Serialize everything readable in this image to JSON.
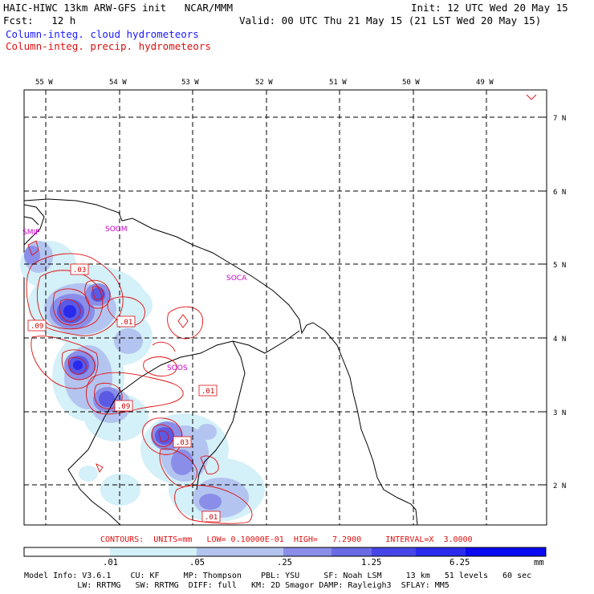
{
  "header": {
    "left_line1": "HAIC-HIWC 13km ARW-GFS init   NCAR/MMM",
    "right_line1": "Init: 12 UTC Wed 20 May 15",
    "left_line2": "Fcst:   12 h",
    "right_line2": "Valid: 00 UTC Thu 21 May 15 (21 LST Wed 20 May 15)",
    "legend_cloud": "Column-integ. cloud hydrometeors",
    "legend_precip": "Column-integ. precip. hydrometeors"
  },
  "map": {
    "lon_labels": [
      "55 W",
      "54 W",
      "53 W",
      "52 W",
      "51 W",
      "50 W",
      "49 W"
    ],
    "lat_labels": [
      "7 N",
      "6 N",
      "5 N",
      "4 N",
      "3 N",
      "2 N"
    ],
    "stations": [
      "SMJP",
      "SOGM",
      "SOCA",
      "SOOS"
    ],
    "contour_labels": [
      ".03",
      ".09",
      ".01",
      ".01",
      ".09",
      ".03",
      ".01"
    ]
  },
  "contour_info": "CONTOURS:  UNITS=mm   LOW= 0.10000E-01  HIGH=   7.2900     INTERVAL=X  3.0000",
  "colorbar": {
    "ticks": [
      ".01",
      ".05",
      ".25",
      "1.25",
      "6.25"
    ],
    "unit": "mm",
    "colors": [
      "#ffffff",
      "#d4f0f8",
      "#b4c4f0",
      "#8a8ee8",
      "#5a5ae4",
      "#2a2aec",
      "#0a0af0"
    ]
  },
  "footer": {
    "line1": "Model Info: V3.6.1    CU: KF     MP: Thompson    PBL: YSU     SF: Noah LSM     13 km   51 levels   60 sec",
    "line2": "           LW: RRTMG   SW: RRTMG  DIFF: full   KM: 2D Smagor DAMP: Rayleigh3  SFLAY: MM5"
  }
}
